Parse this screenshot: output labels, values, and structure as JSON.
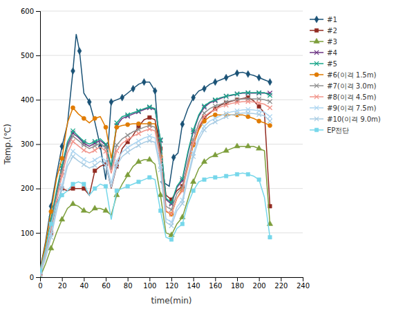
{
  "chart_data": {
    "type": "line",
    "x_label": "time(min)",
    "y_label": "Temp.(℃)",
    "xlim": [
      0,
      240
    ],
    "ylim": [
      0,
      600
    ],
    "xticks": [
      0,
      20,
      40,
      60,
      80,
      100,
      120,
      140,
      160,
      180,
      200,
      220,
      240
    ],
    "yticks": [
      0,
      100,
      200,
      300,
      400,
      500,
      600
    ],
    "grid": true,
    "legend": "upper right",
    "series": [
      {
        "name": "#1",
        "color": "#1a5276",
        "marker": "diamond",
        "x": [
          0,
          5,
          10,
          15,
          20,
          25,
          30,
          33,
          36,
          40,
          45,
          50,
          55,
          60,
          65,
          70,
          75,
          80,
          85,
          90,
          95,
          100,
          105,
          108,
          112,
          118,
          122,
          126,
          130,
          135,
          140,
          145,
          150,
          155,
          160,
          165,
          170,
          175,
          180,
          185,
          190,
          195,
          200,
          205,
          210
        ],
        "values": [
          18,
          80,
          160,
          230,
          295,
          345,
          465,
          548,
          510,
          415,
          395,
          350,
          295,
          220,
          395,
          400,
          405,
          415,
          425,
          435,
          440,
          440,
          420,
          325,
          215,
          205,
          270,
          280,
          345,
          380,
          405,
          420,
          425,
          435,
          440,
          445,
          450,
          455,
          460,
          462,
          458,
          455,
          450,
          445,
          440
        ]
      },
      {
        "name": "#2",
        "color": "#922b21",
        "marker": "square",
        "x": [
          0,
          5,
          10,
          15,
          20,
          25,
          30,
          35,
          40,
          45,
          50,
          55,
          60,
          65,
          70,
          75,
          80,
          85,
          90,
          95,
          100,
          105,
          110,
          115,
          120,
          125,
          130,
          135,
          140,
          145,
          150,
          155,
          160,
          165,
          170,
          175,
          180,
          185,
          190,
          195,
          200,
          205,
          210
        ],
        "values": [
          5,
          50,
          100,
          165,
          200,
          195,
          200,
          200,
          200,
          185,
          240,
          250,
          255,
          200,
          250,
          290,
          305,
          320,
          340,
          355,
          360,
          355,
          290,
          185,
          175,
          195,
          205,
          255,
          300,
          335,
          360,
          370,
          380,
          388,
          393,
          397,
          400,
          403,
          405,
          398,
          385,
          370,
          160
        ]
      },
      {
        "name": "#3",
        "color": "#7d9e3b",
        "marker": "triangle",
        "x": [
          0,
          5,
          10,
          15,
          20,
          25,
          30,
          35,
          40,
          45,
          50,
          55,
          60,
          65,
          70,
          75,
          80,
          85,
          90,
          95,
          100,
          105,
          110,
          115,
          120,
          125,
          130,
          135,
          140,
          145,
          150,
          155,
          160,
          165,
          170,
          175,
          180,
          185,
          190,
          195,
          200,
          205,
          210
        ],
        "values": [
          0,
          30,
          65,
          100,
          130,
          155,
          165,
          160,
          150,
          145,
          155,
          155,
          150,
          140,
          185,
          210,
          230,
          250,
          260,
          265,
          265,
          255,
          185,
          100,
          95,
          120,
          135,
          175,
          215,
          245,
          260,
          270,
          275,
          280,
          285,
          290,
          295,
          295,
          295,
          295,
          290,
          285,
          120
        ]
      },
      {
        "name": "#4",
        "color": "#6c3483",
        "marker": "x",
        "x": [
          0,
          5,
          10,
          15,
          20,
          25,
          30,
          35,
          40,
          45,
          50,
          55,
          60,
          65,
          70,
          75,
          80,
          85,
          90,
          95,
          100,
          105,
          110,
          115,
          120,
          125,
          130,
          135,
          140,
          145,
          150,
          155,
          160,
          165,
          170,
          175,
          180,
          185,
          190,
          195,
          200,
          205,
          210
        ],
        "values": [
          10,
          60,
          125,
          188,
          245,
          298,
          325,
          315,
          302,
          295,
          302,
          308,
          298,
          248,
          342,
          358,
          363,
          368,
          373,
          378,
          382,
          378,
          308,
          175,
          165,
          202,
          218,
          278,
          328,
          363,
          383,
          393,
          398,
          403,
          408,
          410,
          413,
          415,
          415,
          415,
          415,
          415,
          415
        ]
      },
      {
        "name": "#5",
        "color": "#17a589",
        "marker": "x",
        "x": [
          0,
          5,
          10,
          15,
          20,
          25,
          30,
          35,
          40,
          45,
          50,
          55,
          60,
          65,
          70,
          75,
          80,
          85,
          90,
          95,
          100,
          105,
          110,
          115,
          120,
          125,
          130,
          135,
          140,
          145,
          150,
          155,
          160,
          165,
          170,
          175,
          180,
          185,
          190,
          195,
          200,
          205,
          210
        ],
        "values": [
          12,
          65,
          132,
          195,
          252,
          305,
          330,
          318,
          306,
          300,
          306,
          312,
          300,
          250,
          348,
          362,
          366,
          371,
          375,
          380,
          384,
          380,
          310,
          178,
          168,
          205,
          222,
          282,
          332,
          366,
          386,
          395,
          400,
          405,
          408,
          411,
          413,
          416,
          416,
          416,
          416,
          416,
          410
        ]
      },
      {
        "name": "#6(이격 1.5m)",
        "color": "#e07b00",
        "marker": "circle",
        "x": [
          0,
          5,
          10,
          15,
          20,
          25,
          30,
          35,
          40,
          45,
          50,
          55,
          60,
          65,
          70,
          75,
          80,
          85,
          90,
          95,
          100,
          105,
          110,
          115,
          120,
          125,
          130,
          135,
          140,
          145,
          150,
          155,
          160,
          165,
          170,
          175,
          180,
          185,
          190,
          195,
          200,
          205,
          210
        ],
        "values": [
          15,
          75,
          148,
          222,
          268,
          348,
          382,
          368,
          358,
          348,
          358,
          362,
          338,
          268,
          338,
          342,
          344,
          346,
          346,
          346,
          346,
          346,
          272,
          148,
          142,
          178,
          198,
          248,
          298,
          332,
          352,
          362,
          366,
          366,
          366,
          366,
          366,
          366,
          362,
          358,
          352,
          348,
          342
        ]
      },
      {
        "name": "#7(이격 3.0m)",
        "color": "#909090",
        "marker": "x",
        "x": [
          0,
          5,
          10,
          15,
          20,
          25,
          30,
          35,
          40,
          45,
          50,
          55,
          60,
          65,
          70,
          75,
          80,
          85,
          90,
          95,
          100,
          105,
          110,
          115,
          120,
          125,
          130,
          135,
          140,
          145,
          150,
          155,
          160,
          165,
          170,
          175,
          180,
          185,
          190,
          195,
          200,
          205,
          210
        ],
        "values": [
          10,
          58,
          120,
          182,
          238,
          292,
          318,
          308,
          298,
          290,
          296,
          302,
          292,
          242,
          298,
          312,
          320,
          328,
          333,
          338,
          342,
          338,
          275,
          160,
          152,
          188,
          202,
          260,
          310,
          348,
          370,
          380,
          386,
          390,
          395,
          398,
          400,
          402,
          402,
          402,
          402,
          400,
          396
        ]
      },
      {
        "name": "#8(이격 4.5m)",
        "color": "#f1948a",
        "marker": "x",
        "x": [
          0,
          5,
          10,
          15,
          20,
          25,
          30,
          35,
          40,
          45,
          50,
          55,
          60,
          65,
          70,
          75,
          80,
          85,
          90,
          95,
          100,
          105,
          110,
          115,
          120,
          125,
          130,
          135,
          140,
          145,
          150,
          155,
          160,
          165,
          170,
          175,
          180,
          185,
          190,
          195,
          200,
          205,
          210
        ],
        "values": [
          8,
          52,
          110,
          172,
          228,
          280,
          306,
          296,
          286,
          280,
          286,
          294,
          284,
          234,
          285,
          302,
          310,
          318,
          324,
          330,
          334,
          330,
          266,
          150,
          142,
          178,
          194,
          252,
          302,
          340,
          362,
          372,
          378,
          384,
          388,
          392,
          394,
          396,
          396,
          395,
          393,
          390,
          382
        ]
      },
      {
        "name": "#9(이격 7.5m)",
        "color": "#aed6f1",
        "marker": "x",
        "x": [
          0,
          5,
          10,
          15,
          20,
          25,
          30,
          35,
          40,
          45,
          50,
          55,
          60,
          65,
          70,
          75,
          80,
          85,
          90,
          95,
          100,
          105,
          110,
          115,
          120,
          125,
          130,
          135,
          140,
          145,
          150,
          155,
          160,
          165,
          170,
          175,
          180,
          185,
          190,
          195,
          200,
          205,
          210
        ],
        "values": [
          5,
          46,
          97,
          158,
          208,
          260,
          284,
          274,
          265,
          258,
          264,
          272,
          262,
          212,
          262,
          282,
          292,
          300,
          307,
          314,
          318,
          314,
          252,
          132,
          124,
          158,
          174,
          230,
          280,
          318,
          340,
          352,
          358,
          364,
          369,
          373,
          375,
          377,
          378,
          377,
          375,
          372,
          362
        ]
      },
      {
        "name": "#10(이격 9.0m)",
        "color": "#a9cce3",
        "marker": "x",
        "x": [
          0,
          5,
          10,
          15,
          20,
          25,
          30,
          35,
          40,
          45,
          50,
          55,
          60,
          65,
          70,
          75,
          80,
          85,
          90,
          95,
          100,
          105,
          110,
          115,
          120,
          125,
          130,
          135,
          140,
          145,
          150,
          155,
          160,
          165,
          170,
          175,
          180,
          185,
          190,
          195,
          200,
          205,
          210
        ],
        "values": [
          5,
          42,
          90,
          148,
          198,
          250,
          272,
          262,
          254,
          246,
          252,
          262,
          252,
          202,
          252,
          272,
          282,
          290,
          297,
          304,
          308,
          304,
          242,
          124,
          116,
          150,
          166,
          222,
          272,
          310,
          332,
          344,
          350,
          356,
          362,
          366,
          368,
          370,
          370,
          369,
          367,
          364,
          352
        ]
      },
      {
        "name": "EP전단",
        "color": "#76d7ea",
        "marker": "square",
        "x": [
          0,
          5,
          10,
          15,
          20,
          25,
          30,
          35,
          40,
          45,
          50,
          55,
          60,
          65,
          70,
          75,
          80,
          85,
          90,
          95,
          100,
          105,
          110,
          115,
          120,
          125,
          130,
          135,
          140,
          145,
          150,
          155,
          160,
          165,
          170,
          175,
          180,
          185,
          190,
          195,
          200,
          205,
          210
        ],
        "values": [
          15,
          60,
          120,
          165,
          185,
          195,
          210,
          215,
          210,
          185,
          200,
          210,
          205,
          130,
          195,
          200,
          205,
          210,
          215,
          220,
          225,
          220,
          150,
          90,
          85,
          110,
          120,
          165,
          195,
          215,
          220,
          225,
          225,
          225,
          228,
          230,
          232,
          235,
          232,
          228,
          220,
          180,
          90
        ]
      }
    ]
  }
}
